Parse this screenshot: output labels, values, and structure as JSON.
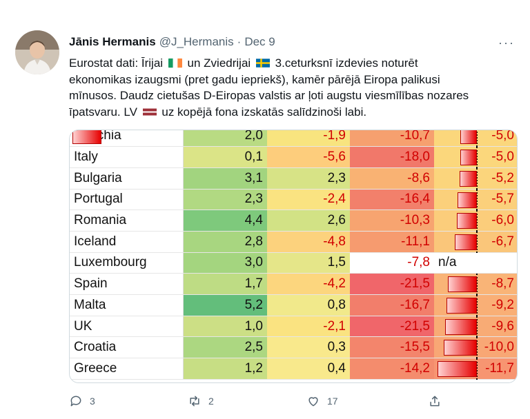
{
  "tweet": {
    "name": "Jānis Hermanis",
    "handle": "@J_Hermanis",
    "separator": "·",
    "date": "Dec 9",
    "more": "···",
    "text": {
      "l1a": "Eurostat dati: Īrijai",
      "l1b": "un Zviedrijai",
      "l1c": "3.ceturksnī izdevies noturēt",
      "l2": "ekonomikas izaugsmi (pret gadu iepriekš), kamēr pārējā Eiropa palikusi",
      "l3": "mīnusos. Daudz cietušas D-Eiropas valstis ar ļoti augstu viesmīlības nozares",
      "l4a": "īpatsvaru. LV",
      "l4b": "uz kopējā fona izskatās salīdzinoši labi."
    }
  },
  "table": {
    "rows": [
      {
        "country": "Czechia",
        "c1": "2,0",
        "c2": "-1,9",
        "c3": "-10,7",
        "c4": "-5,0",
        "c4v": 5.0,
        "c1bg": "#b9db83",
        "c2bg": "#f8e47f",
        "c3bg": "#f6a06f",
        "c4bg": "#fbd77c"
      },
      {
        "country": "Italy",
        "c1": "0,1",
        "c2": "-5,6",
        "c3": "-18,0",
        "c4": "-5,0",
        "c4v": 5.0,
        "c1bg": "#dbe487",
        "c2bg": "#fdcd7c",
        "c3bg": "#f1786a",
        "c4bg": "#fbd77c"
      },
      {
        "country": "Bulgaria",
        "c1": "3,1",
        "c2": "2,3",
        "c3": "-8,6",
        "c4": "-5,2",
        "c4v": 5.2,
        "c1bg": "#a2d47f",
        "c2bg": "#d7e386",
        "c3bg": "#f9b273",
        "c4bg": "#fbd57c"
      },
      {
        "country": "Portugal",
        "c1": "2,3",
        "c2": "-2,4",
        "c3": "-16,4",
        "c4": "-5,7",
        "c4v": 5.7,
        "c1bg": "#b1d982",
        "c2bg": "#fae381",
        "c3bg": "#f2806b",
        "c4bg": "#fbd07b"
      },
      {
        "country": "Romania",
        "c1": "4,4",
        "c2": "2,6",
        "c3": "-10,3",
        "c4": "-6,0",
        "c4v": 6.0,
        "c1bg": "#7ec97c",
        "c2bg": "#d2e285",
        "c3bg": "#f7a470",
        "c4bg": "#fbcd7b"
      },
      {
        "country": "Iceland",
        "c1": "2,8",
        "c2": "-4,8",
        "c3": "-11,1",
        "c4": "-6,7",
        "c4v": 6.7,
        "c1bg": "#a8d680",
        "c2bg": "#fcd27d",
        "c3bg": "#f69b6f",
        "c4bg": "#fac67a"
      },
      {
        "country": "Luxembourg",
        "c1": "3,0",
        "c2": "1,5",
        "c3": "-7,8",
        "c3v": 7.8,
        "c4": "n/a",
        "c4v": 0,
        "c1bg": "#a4d57f",
        "c2bg": "#e5e689",
        "c3bg": "#ffffff",
        "c4bg": "#ffffff"
      },
      {
        "country": "Spain",
        "c1": "1,7",
        "c2": "-4,2",
        "c3": "-21,5",
        "c4": "-8,7",
        "c4v": 8.7,
        "c1bg": "#bedc84",
        "c2bg": "#fcd67e",
        "c3bg": "#f0666a",
        "c4bg": "#f9b477"
      },
      {
        "country": "Malta",
        "c1": "5,2",
        "c2": "0,8",
        "c3": "-16,7",
        "c4": "-9,2",
        "c4v": 9.2,
        "c1bg": "#63be7b",
        "c2bg": "#f1e98b",
        "c3bg": "#f27e6b",
        "c4bg": "#f9af76"
      },
      {
        "country": "UK",
        "c1": "1,0",
        "c2": "-2,1",
        "c3": "-21,5",
        "c4": "-9,6",
        "c4v": 9.6,
        "c1bg": "#ccdf85",
        "c2bg": "#fae381",
        "c3bg": "#f0666a",
        "c4bg": "#f8ab75"
      },
      {
        "country": "Croatia",
        "c1": "2,5",
        "c2": "0,3",
        "c3": "-15,5",
        "c4": "-10,0",
        "c4v": 10.0,
        "c1bg": "#acd781",
        "c2bg": "#f9e98c",
        "c3bg": "#f3856c",
        "c4bg": "#f8a775"
      },
      {
        "country": "Greece",
        "c1": "1,2",
        "c2": "0,4",
        "c3": "-14,2",
        "c4": "-11,7",
        "c4v": 11.7,
        "c1bg": "#c7de84",
        "c2bg": "#f8e98c",
        "c3bg": "#f48c6d",
        "c4bg": "#f79571"
      }
    ]
  },
  "actions": {
    "reply_count": "3",
    "retweet_count": "2",
    "like_count": "17"
  },
  "icons": [
    "reply-icon",
    "retweet-icon",
    "like-icon",
    "share-icon",
    "flag-ireland-icon",
    "flag-sweden-icon",
    "flag-latvia-icon"
  ],
  "colors": {
    "text": "#0f1419",
    "secondary": "#536471",
    "negative": "#d10000",
    "bar_red": "#e60000"
  }
}
